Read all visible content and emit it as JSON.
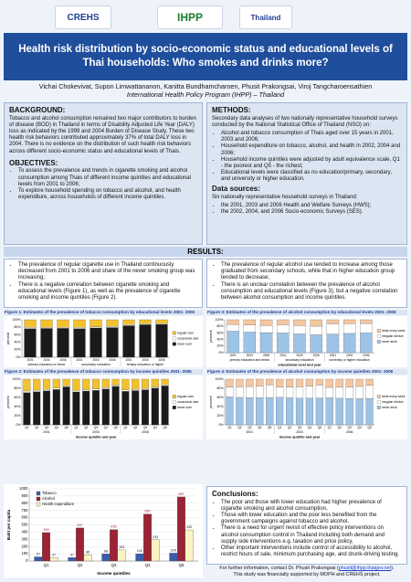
{
  "header": {
    "logos": [
      "CREHS",
      "IHPP",
      "Thailand"
    ],
    "title": "Health risk distribution by socio-economic status and educational levels of Thai households: Who smokes and drinks more?",
    "authors": "Vichai Chokevivat, Supon Limwattananon, Kanitta Bundhamcharoen, Phusit  Prakongsai, Viroj Tangcharoensathien",
    "affiliation": "International Health Policy Program (IHPP) – Thailand"
  },
  "background": {
    "heading": "BACKGROUND:",
    "text": "Tobacco and alcohol consumption remained two major contributors to burden of disease (BOD) in Thailand in terms of Disability Adjusted Life Year (DALY) loss as indicated by the 1999 and 2004 Burden of Disease Study.  These two health risk behaviors contributed approximately 37% of total DALY loss in 2004.  There is no evidence on the distribution of such health risk behaviors across different socio-economic status and educational levels of Thais."
  },
  "objectives": {
    "heading": "OBJECTIVES:",
    "items": [
      "To assess the prevalence and trends in cigarette smoking and alcohol consumption among Thais of different income quintiles and educational levels from 2001 to 2006;",
      "To explore household spending on tobacco and alcohol, and health expenditure, across households of different income quintiles."
    ]
  },
  "methods": {
    "heading": "METHODS:",
    "text": "Secondary data analyses of two nationally representative household surveys conducted by the National Statistical Office of Thailand (NSO) on:",
    "items": [
      "Alcohol and tobacco consumption of Thais aged over 15 years in 2001, 2003 and 2006;",
      "Household expenditure on tobacco, alcohol, and health in 2002, 2004 and 2006;",
      "Household income quintiles were adjusted by adult equivalence scale, Q1 - the poorest and Q5 - the richest;",
      "Educational levels were classified as no education/primary, secondary, and university or higher education."
    ]
  },
  "data_sources": {
    "heading": "Data sources:",
    "text": "Six nationally representative household surveys in Thailand:",
    "items": [
      "the 2001, 2003 and 2006 Health and Welfare Surveys (HWS);",
      "the 2002, 2004, and 2006 Socio-economic Surveys (SES)."
    ]
  },
  "results": {
    "heading": "RESULTS:",
    "left_items": [
      "The prevalence of regular cigarette use in Thailand continuously decreased from 2001 to 2006 and share of the never smoking group was increasing;",
      "There is a negative correlation between cigarette smoking and educational levels (Figure 1), as well as the prevalence of cigarette smoking and income quintiles (Figure 2)."
    ],
    "right_items": [
      "The prevalence of regular alcohol use tended to increase among those graduated from secondary schools, while that in higher education group tended to decrease;",
      "There is an unclear correlation between the prevalence of alcohol consumption and educational levels (Figure 3), but a negative correlation between alcohol consumption and income quintiles."
    ]
  },
  "conclusions": {
    "heading": "Conclusions:",
    "items": [
      "The poor and those with lower education had higher prevalence of cigarette smoking and alcohol consumption,",
      "Those with lower education and the poor less benefited from the government campaigns against tobacco and alcohol,",
      "There is a need for urgent revisit of effective policy interventions on alcohol consumption control in Thailand including both demand and supply side interventions e.g. taxation and price policy,",
      "Other important interventions include control of accessibility to alcohol, restrict hours of sale, minimum purchasing age, and drunk-driving testing."
    ]
  },
  "footer": {
    "parts": [
      "For further information, contact Dr. Phusit Prakongsai (",
      "phusit@ihpp.thaigov.net",
      ")."
    ],
    "note": "This study was financially supported by MOPH and CREHS project."
  },
  "chart_data": [
    {
      "type": "stacked_bar",
      "title": "Figure 1: Estimates of the prevalence of tobacco consumption by educational levels 2001- 2006",
      "y_label": "percent",
      "categories": [
        "2001",
        "2003",
        "2006",
        "2001",
        "2003",
        "2006",
        "2001",
        "2003",
        "2006"
      ],
      "group_labels": [
        "primary education or below",
        "secondary education",
        "tertiary education or higher"
      ],
      "series": [
        {
          "name": "regular user",
          "color": "#f2c12e",
          "values": [
            20.3,
            20.2,
            20.1,
            20.1,
            18.7,
            17.9,
            12.8,
            10.6,
            9.8
          ]
        },
        {
          "name": "occasional user",
          "color": "#ffffff",
          "values": [
            3.1,
            2.8,
            2.6,
            3.3,
            3.0,
            2.8,
            2.9,
            2.5,
            2.4
          ]
        },
        {
          "name": "never user",
          "color": "#1a1a1a",
          "values": [
            76.6,
            77.0,
            77.3,
            76.6,
            78.3,
            79.3,
            84.3,
            86.9,
            87.8
          ]
        }
      ],
      "ylim": [
        0,
        100
      ],
      "yticks": [
        {
          "value": 0,
          "label": "0%"
        },
        {
          "value": 20,
          "label": "20%"
        },
        {
          "value": 40,
          "label": "40%"
        },
        {
          "value": 60,
          "label": "60%"
        },
        {
          "value": 80,
          "label": "80%"
        },
        {
          "value": 100,
          "label": "100%"
        }
      ],
      "grid": true
    },
    {
      "type": "stacked_bar",
      "title": "Figure 2: Estimates of the prevalence of tobacco consumption by income quintiles 2001- 2006",
      "y_label": "percent",
      "x_label": "income quintile and year",
      "categories": [
        "Q1",
        "Q2",
        "Q3",
        "Q4",
        "Q5",
        "Q1",
        "Q2",
        "Q3",
        "Q4",
        "Q5",
        "Q1",
        "Q2",
        "Q3",
        "Q4",
        "Q5"
      ],
      "group_labels": [
        "2001",
        "2003",
        "2006"
      ],
      "series": [
        {
          "name": "regular user",
          "color": "#f2c12e",
          "values": [
            26.0,
            24.1,
            22.3,
            19.5,
            14.2,
            24.8,
            23.0,
            21.5,
            18.6,
            13.0,
            23.5,
            22.2,
            20.4,
            17.1,
            12.1
          ]
        },
        {
          "name": "occasional user",
          "color": "#ffffff",
          "values": [
            3.2,
            3.1,
            3.0,
            2.9,
            2.6,
            3.0,
            2.9,
            2.8,
            2.7,
            2.4,
            2.9,
            2.8,
            2.7,
            2.5,
            2.3
          ]
        },
        {
          "name": "never user",
          "color": "#1a1a1a",
          "values": [
            70.8,
            72.8,
            74.7,
            77.6,
            83.2,
            72.2,
            74.1,
            75.7,
            78.7,
            84.6,
            73.6,
            75.0,
            76.9,
            80.4,
            85.6
          ]
        }
      ],
      "ylim": [
        0,
        100
      ],
      "yticks": [
        {
          "value": 0,
          "label": "0%"
        },
        {
          "value": 20,
          "label": "20%"
        },
        {
          "value": 40,
          "label": "40%"
        },
        {
          "value": 60,
          "label": "60%"
        },
        {
          "value": 80,
          "label": "80%"
        },
        {
          "value": 100,
          "label": "100%"
        }
      ],
      "grid": true
    },
    {
      "type": "stacked_bar",
      "title": "Figure 3: Estimates of the prevalence of alcohol consumption by educational levels 2001- 2006",
      "y_label": "percent",
      "x_label": "educational level and year",
      "categories": [
        "2001",
        "2003",
        "2006",
        "2001",
        "2003",
        "2006",
        "2001",
        "2003",
        "2006"
      ],
      "group_labels": [
        "primary education and below",
        "secondary education",
        "university or higher education"
      ],
      "series": [
        {
          "name": "drink every week",
          "color": "#f4c7a1",
          "values": [
            14.6,
            16.1,
            17.0,
            15.2,
            17.8,
            19.5,
            12.4,
            11.9,
            11.2
          ]
        },
        {
          "name": "irregular drinker",
          "color": "#ffffff",
          "values": [
            20.1,
            21.5,
            22.0,
            24.8,
            25.3,
            26.1,
            31.0,
            29.6,
            28.8
          ]
        },
        {
          "name": "never drink",
          "color": "#9dc3e6",
          "values": [
            65.3,
            62.4,
            61.0,
            60.0,
            56.9,
            54.4,
            56.6,
            58.5,
            60.0
          ]
        }
      ],
      "ylim": [
        0,
        100
      ],
      "yticks": [
        {
          "value": 0,
          "label": "0%"
        },
        {
          "value": 20,
          "label": "20%"
        },
        {
          "value": 40,
          "label": "40%"
        },
        {
          "value": 60,
          "label": "60%"
        },
        {
          "value": 80,
          "label": "80%"
        },
        {
          "value": 100,
          "label": "100%"
        }
      ],
      "grid": true
    },
    {
      "type": "stacked_bar",
      "title": "Figure 4: Estimates of the prevalence of alcohol consumption by income quintiles 2001- 2006",
      "y_label": "percent",
      "x_label": "income quintile and year",
      "categories": [
        "Q1",
        "Q2",
        "Q3",
        "Q4",
        "Q5",
        "Q1",
        "Q2",
        "Q3",
        "Q4",
        "Q5",
        "Q1",
        "Q2",
        "Q3",
        "Q4",
        "Q5"
      ],
      "group_labels": [
        "2001",
        "2003",
        "2006"
      ],
      "series": [
        {
          "name": "drink every week",
          "color": "#f4c7a1",
          "values": [
            17.2,
            16.9,
            16.1,
            15.0,
            12.3,
            17.6,
            17.1,
            16.8,
            15.4,
            12.9,
            18.0,
            17.8,
            17.2,
            15.9,
            13.1
          ]
        },
        {
          "name": "irregular drinker",
          "color": "#ffffff",
          "values": [
            21.5,
            23.0,
            24.1,
            25.6,
            27.9,
            22.1,
            23.6,
            24.8,
            26.0,
            28.4,
            22.8,
            24.0,
            25.1,
            26.7,
            29.0
          ]
        },
        {
          "name": "never drink",
          "color": "#9dc3e6",
          "values": [
            61.3,
            60.1,
            59.8,
            59.4,
            59.8,
            60.3,
            59.3,
            58.4,
            58.6,
            58.7,
            59.2,
            58.2,
            57.7,
            57.4,
            57.9
          ]
        }
      ],
      "ylim": [
        0,
        100
      ],
      "yticks": [
        {
          "value": 0,
          "label": "0%"
        },
        {
          "value": 20,
          "label": "20%"
        },
        {
          "value": 40,
          "label": "40%"
        },
        {
          "value": 60,
          "label": "60%"
        },
        {
          "value": 80,
          "label": "80%"
        },
        {
          "value": 100,
          "label": "100%"
        }
      ],
      "grid": true
    },
    {
      "type": "grouped_bar",
      "y_label": "Baht per capita",
      "x_label": "Income quintiles",
      "categories": [
        "Q1",
        "Q2",
        "Q3",
        "Q4",
        "Q5"
      ],
      "series": [
        {
          "name": "Tobacco",
          "color": "#3b5ba9",
          "values": [
            57,
            47,
            98,
            100,
            109
          ]
        },
        {
          "name": "Alcohol",
          "color": "#9b2335",
          "values": [
            393,
            457,
            435,
            650,
            887
          ]
        },
        {
          "name": "Health expenditure",
          "color": "#fbf3c2",
          "values": [
            47,
            85,
            153,
            293,
            430
          ]
        }
      ],
      "ylim": [
        0,
        1000
      ],
      "yticks": [
        0,
        100,
        200,
        300,
        400,
        500,
        600,
        700,
        800,
        900,
        1000
      ],
      "grid": true
    }
  ]
}
